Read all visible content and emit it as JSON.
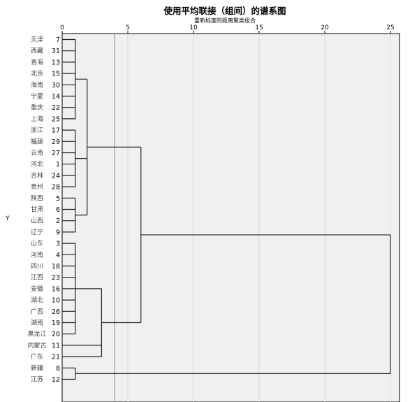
{
  "chart_data": {
    "type": "dendrogram",
    "title": "使用平均联接（组间）的谱系图",
    "subtitle": "重新标度的距离聚类组合",
    "ylabel": "Y",
    "x_ticks": [
      0,
      5,
      10,
      15,
      20,
      25
    ],
    "xlim": [
      0,
      25
    ],
    "grid": true,
    "leaves": [
      {
        "label": "天津",
        "id": "7"
      },
      {
        "label": "西藏",
        "id": "31"
      },
      {
        "label": "青海",
        "id": "13"
      },
      {
        "label": "北京",
        "id": "15"
      },
      {
        "label": "海南",
        "id": "30"
      },
      {
        "label": "宁夏",
        "id": "14"
      },
      {
        "label": "重庆",
        "id": "22"
      },
      {
        "label": "上海",
        "id": "25"
      },
      {
        "label": "浙江",
        "id": "17"
      },
      {
        "label": "福建",
        "id": "29"
      },
      {
        "label": "云南",
        "id": "27"
      },
      {
        "label": "河北",
        "id": "1"
      },
      {
        "label": "吉林",
        "id": "24"
      },
      {
        "label": "贵州",
        "id": "28"
      },
      {
        "label": "陕西",
        "id": "5"
      },
      {
        "label": "甘肃",
        "id": "6"
      },
      {
        "label": "山西",
        "id": "2"
      },
      {
        "label": "辽宁",
        "id": "9"
      },
      {
        "label": "山东",
        "id": "3"
      },
      {
        "label": "河南",
        "id": "4"
      },
      {
        "label": "四川",
        "id": "18"
      },
      {
        "label": "江西",
        "id": "23"
      },
      {
        "label": "安徽",
        "id": "16"
      },
      {
        "label": "湖北",
        "id": "10"
      },
      {
        "label": "广西",
        "id": "26"
      },
      {
        "label": "湖南",
        "id": "19"
      },
      {
        "label": "黑龙江",
        "id": "20"
      },
      {
        "label": "内蒙古",
        "id": "11"
      },
      {
        "label": "广东",
        "id": "21"
      },
      {
        "label": "新疆",
        "id": "8"
      },
      {
        "label": "江苏",
        "id": "12"
      }
    ],
    "merges": [
      {
        "from": 0,
        "to": 7,
        "height": 1.0
      },
      {
        "from": 8,
        "to": 13,
        "height": 1.0
      },
      {
        "from": 14,
        "to": 17,
        "height": 1.0
      },
      {
        "from": 18,
        "to": 26,
        "height": 1.0
      },
      {
        "from": 29,
        "to": 30,
        "height": 1.0
      },
      {
        "from": 0,
        "to": 17,
        "height": 1.9
      },
      {
        "from": 18,
        "to": 28,
        "height": 3.0
      },
      {
        "from": 0,
        "to": 28,
        "height": 6.0
      },
      {
        "from": 0,
        "to": 30,
        "height": 25.0
      }
    ],
    "reference_line_at": 4.0
  }
}
